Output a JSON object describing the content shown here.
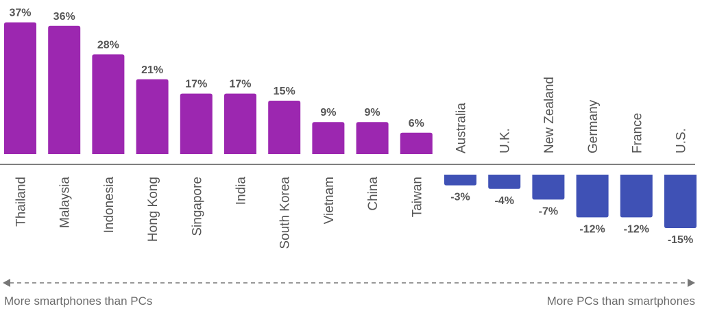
{
  "chart_data": {
    "type": "bar",
    "categories": [
      "Thailand",
      "Malaysia",
      "Indonesia",
      "Hong Kong",
      "Singapore",
      "India",
      "South Korea",
      "Vietnam",
      "China",
      "Taiwan",
      "Australia",
      "U.K.",
      "New Zealand",
      "Germany",
      "France",
      "U.S."
    ],
    "values": [
      37,
      36,
      28,
      21,
      17,
      17,
      15,
      9,
      9,
      6,
      -3,
      -4,
      -7,
      -12,
      -12,
      -15
    ],
    "value_labels": [
      "37%",
      "36%",
      "28%",
      "21%",
      "17%",
      "17%",
      "15%",
      "9%",
      "9%",
      "6%",
      "-3%",
      "-4%",
      "-7%",
      "-12%",
      "-12%",
      "-15%"
    ],
    "ylim": [
      -15,
      37
    ],
    "grid": false,
    "colors": {
      "positive": "#9c27b0",
      "negative": "#3f51b5",
      "axis": "#555555",
      "text": "#555555",
      "arrow": "#777777"
    }
  },
  "captions": {
    "left": "More smartphones than PCs",
    "right": "More PCs than smartphones"
  }
}
